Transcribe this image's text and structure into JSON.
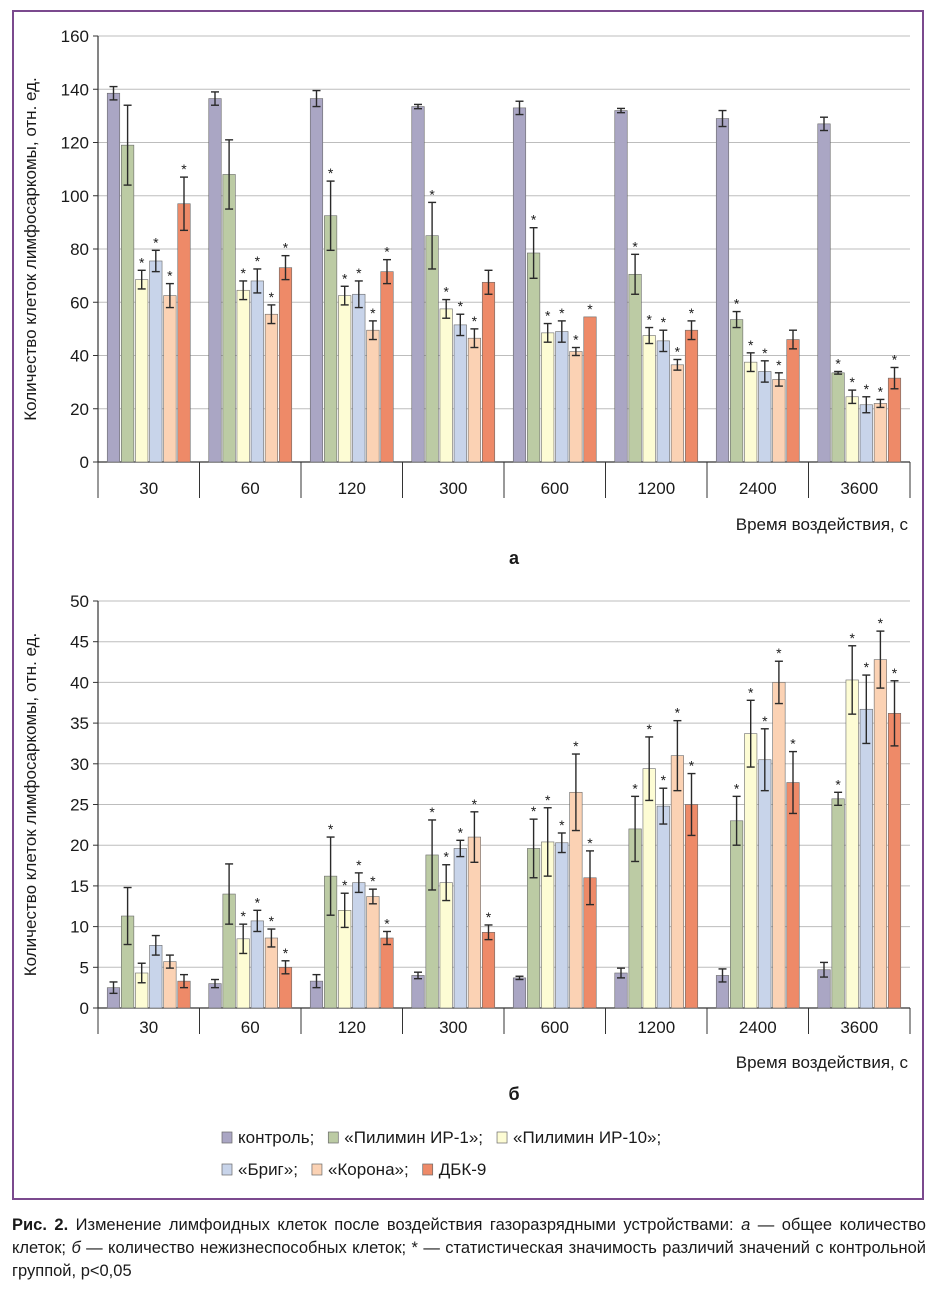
{
  "colors": {
    "frame": "#7b4a8e",
    "control": "#aaa6c4",
    "pilimin1": "#bccba4",
    "pilimin10": "#fdfcd4",
    "brig": "#c8d4ea",
    "korona": "#fbd2b4",
    "dbk9": "#ee8a68"
  },
  "legend": {
    "items": [
      {
        "key": "control",
        "label": "контроль;"
      },
      {
        "key": "pilimin1",
        "label": "«Пилимин ИР-1»;"
      },
      {
        "key": "pilimin10",
        "label": "«Пилимин ИР-10»;"
      },
      {
        "key": "brig",
        "label": "«Бриг»;"
      },
      {
        "key": "korona",
        "label": "«Корона»;"
      },
      {
        "key": "dbk9",
        "label": "ДБК-9"
      }
    ]
  },
  "caption": {
    "prefix": "Рис. 2.",
    "text": " Изменение лимфоидных клеток после воздействия газоразрядными устройствами: ",
    "a_letter": "а",
    "a_text": " — общее количество клеток; ",
    "b_letter": "б",
    "b_text": " — количество нежизнеспособных клеток; * — статистическая значимость различий значений с контрольной группой, p<0,05"
  },
  "chart_data": [
    {
      "type": "bar",
      "panel_label": "а",
      "ylabel": "Количество клеток лимфосаркомы, отн. ед.",
      "xlabel": "Время воздействия, с",
      "categories": [
        "30",
        "60",
        "120",
        "300",
        "600",
        "1200",
        "2400",
        "3600"
      ],
      "ylim": [
        0,
        160
      ],
      "yticks": [
        0,
        20,
        40,
        60,
        80,
        100,
        120,
        140,
        160
      ],
      "grid": true,
      "series": [
        {
          "name": "контроль",
          "key": "control",
          "values": [
            138.5,
            136.5,
            136.5,
            133.5,
            133,
            132,
            129,
            127
          ],
          "errors": [
            2.5,
            2.5,
            3,
            0.8,
            2.5,
            0.8,
            3,
            2.5
          ],
          "significant": [
            false,
            false,
            false,
            false,
            false,
            false,
            false,
            false
          ]
        },
        {
          "name": "«Пилимин ИР-1»",
          "key": "pilimin1",
          "values": [
            119,
            108,
            92.5,
            85,
            78.5,
            70.5,
            53.5,
            33.5
          ],
          "errors": [
            15,
            13,
            13,
            12.5,
            9.5,
            7.5,
            3,
            0.5
          ],
          "significant": [
            false,
            false,
            true,
            true,
            true,
            true,
            true,
            true
          ]
        },
        {
          "name": "«Пилимин ИР-10»",
          "key": "pilimin10",
          "values": [
            68.5,
            64.5,
            62.5,
            57.5,
            48.5,
            47.5,
            37.5,
            24.5
          ],
          "errors": [
            3.5,
            3.5,
            3.5,
            3.5,
            3.5,
            3,
            3.5,
            2.5
          ],
          "significant": [
            true,
            true,
            true,
            true,
            true,
            true,
            true,
            true
          ]
        },
        {
          "name": "«Бриг»",
          "key": "brig",
          "values": [
            75.5,
            68,
            63,
            51.5,
            49,
            45.5,
            34,
            21.5
          ],
          "errors": [
            4,
            4.5,
            5,
            4,
            4,
            4,
            4,
            3
          ],
          "significant": [
            true,
            true,
            true,
            true,
            true,
            true,
            true,
            true
          ]
        },
        {
          "name": "«Корона»",
          "key": "korona",
          "values": [
            62.5,
            55.5,
            49.5,
            46.5,
            41.5,
            36.5,
            31,
            22
          ],
          "errors": [
            4.5,
            3.5,
            3.5,
            3.5,
            1.5,
            2,
            2.5,
            1.5
          ],
          "significant": [
            true,
            true,
            true,
            true,
            true,
            true,
            true,
            true
          ]
        },
        {
          "name": "ДБК-9",
          "key": "dbk9",
          "values": [
            97,
            73,
            71.5,
            67.5,
            54.5,
            49.5,
            46,
            31.5
          ],
          "errors": [
            10,
            4.5,
            4.5,
            4.5,
            0,
            3.5,
            3.5,
            4
          ],
          "significant": [
            true,
            true,
            true,
            false,
            true,
            true,
            false,
            true
          ]
        }
      ]
    },
    {
      "type": "bar",
      "panel_label": "б",
      "ylabel": "Количество клеток лимфосаркомы, отн. ед.",
      "xlabel": "Время воздействия, с",
      "categories": [
        "30",
        "60",
        "120",
        "300",
        "600",
        "1200",
        "2400",
        "3600"
      ],
      "ylim": [
        0,
        50
      ],
      "yticks": [
        0,
        5,
        10,
        15,
        20,
        25,
        30,
        35,
        40,
        45,
        50
      ],
      "grid": true,
      "series": [
        {
          "name": "контроль",
          "key": "control",
          "values": [
            2.5,
            3,
            3.3,
            4,
            3.7,
            4.3,
            4,
            4.7
          ],
          "errors": [
            0.7,
            0.5,
            0.8,
            0.4,
            0.2,
            0.6,
            0.8,
            0.9
          ],
          "significant": [
            false,
            false,
            false,
            false,
            false,
            false,
            false,
            false
          ]
        },
        {
          "name": "«Пилимин ИР-1»",
          "key": "pilimin1",
          "values": [
            11.3,
            14,
            16.2,
            18.8,
            19.6,
            22,
            23,
            25.7
          ],
          "errors": [
            3.5,
            3.7,
            4.8,
            4.3,
            3.6,
            4,
            3,
            0.8
          ],
          "significant": [
            false,
            false,
            true,
            true,
            true,
            true,
            true,
            true
          ]
        },
        {
          "name": "«Пилимин ИР-10»",
          "key": "pilimin10",
          "values": [
            4.3,
            8.5,
            12,
            15.4,
            20.4,
            29.4,
            33.7,
            40.3
          ],
          "errors": [
            1.2,
            1.8,
            2.1,
            2.2,
            4.2,
            3.9,
            4.1,
            4.2
          ],
          "significant": [
            false,
            true,
            true,
            true,
            true,
            true,
            true,
            true
          ]
        },
        {
          "name": "«Бриг»",
          "key": "brig",
          "values": [
            7.7,
            10.7,
            15.4,
            19.6,
            20.3,
            24.8,
            30.5,
            36.7
          ],
          "errors": [
            1.2,
            1.3,
            1.2,
            1,
            1.2,
            2.2,
            3.8,
            4.2
          ],
          "significant": [
            false,
            true,
            true,
            true,
            true,
            true,
            true,
            true
          ]
        },
        {
          "name": "«Корона»",
          "key": "korona",
          "values": [
            5.7,
            8.6,
            13.7,
            21,
            26.5,
            31,
            40,
            42.8
          ],
          "errors": [
            0.8,
            1.1,
            0.9,
            3.1,
            4.7,
            4.3,
            2.6,
            3.5
          ],
          "significant": [
            false,
            true,
            true,
            true,
            true,
            true,
            true,
            true
          ]
        },
        {
          "name": "ДБК-9",
          "key": "dbk9",
          "values": [
            3.3,
            5,
            8.6,
            9.3,
            16,
            25,
            27.7,
            36.2
          ],
          "errors": [
            0.8,
            0.8,
            0.8,
            0.9,
            3.3,
            3.8,
            3.8,
            4
          ],
          "significant": [
            false,
            true,
            true,
            true,
            true,
            true,
            true,
            true
          ]
        }
      ]
    }
  ]
}
